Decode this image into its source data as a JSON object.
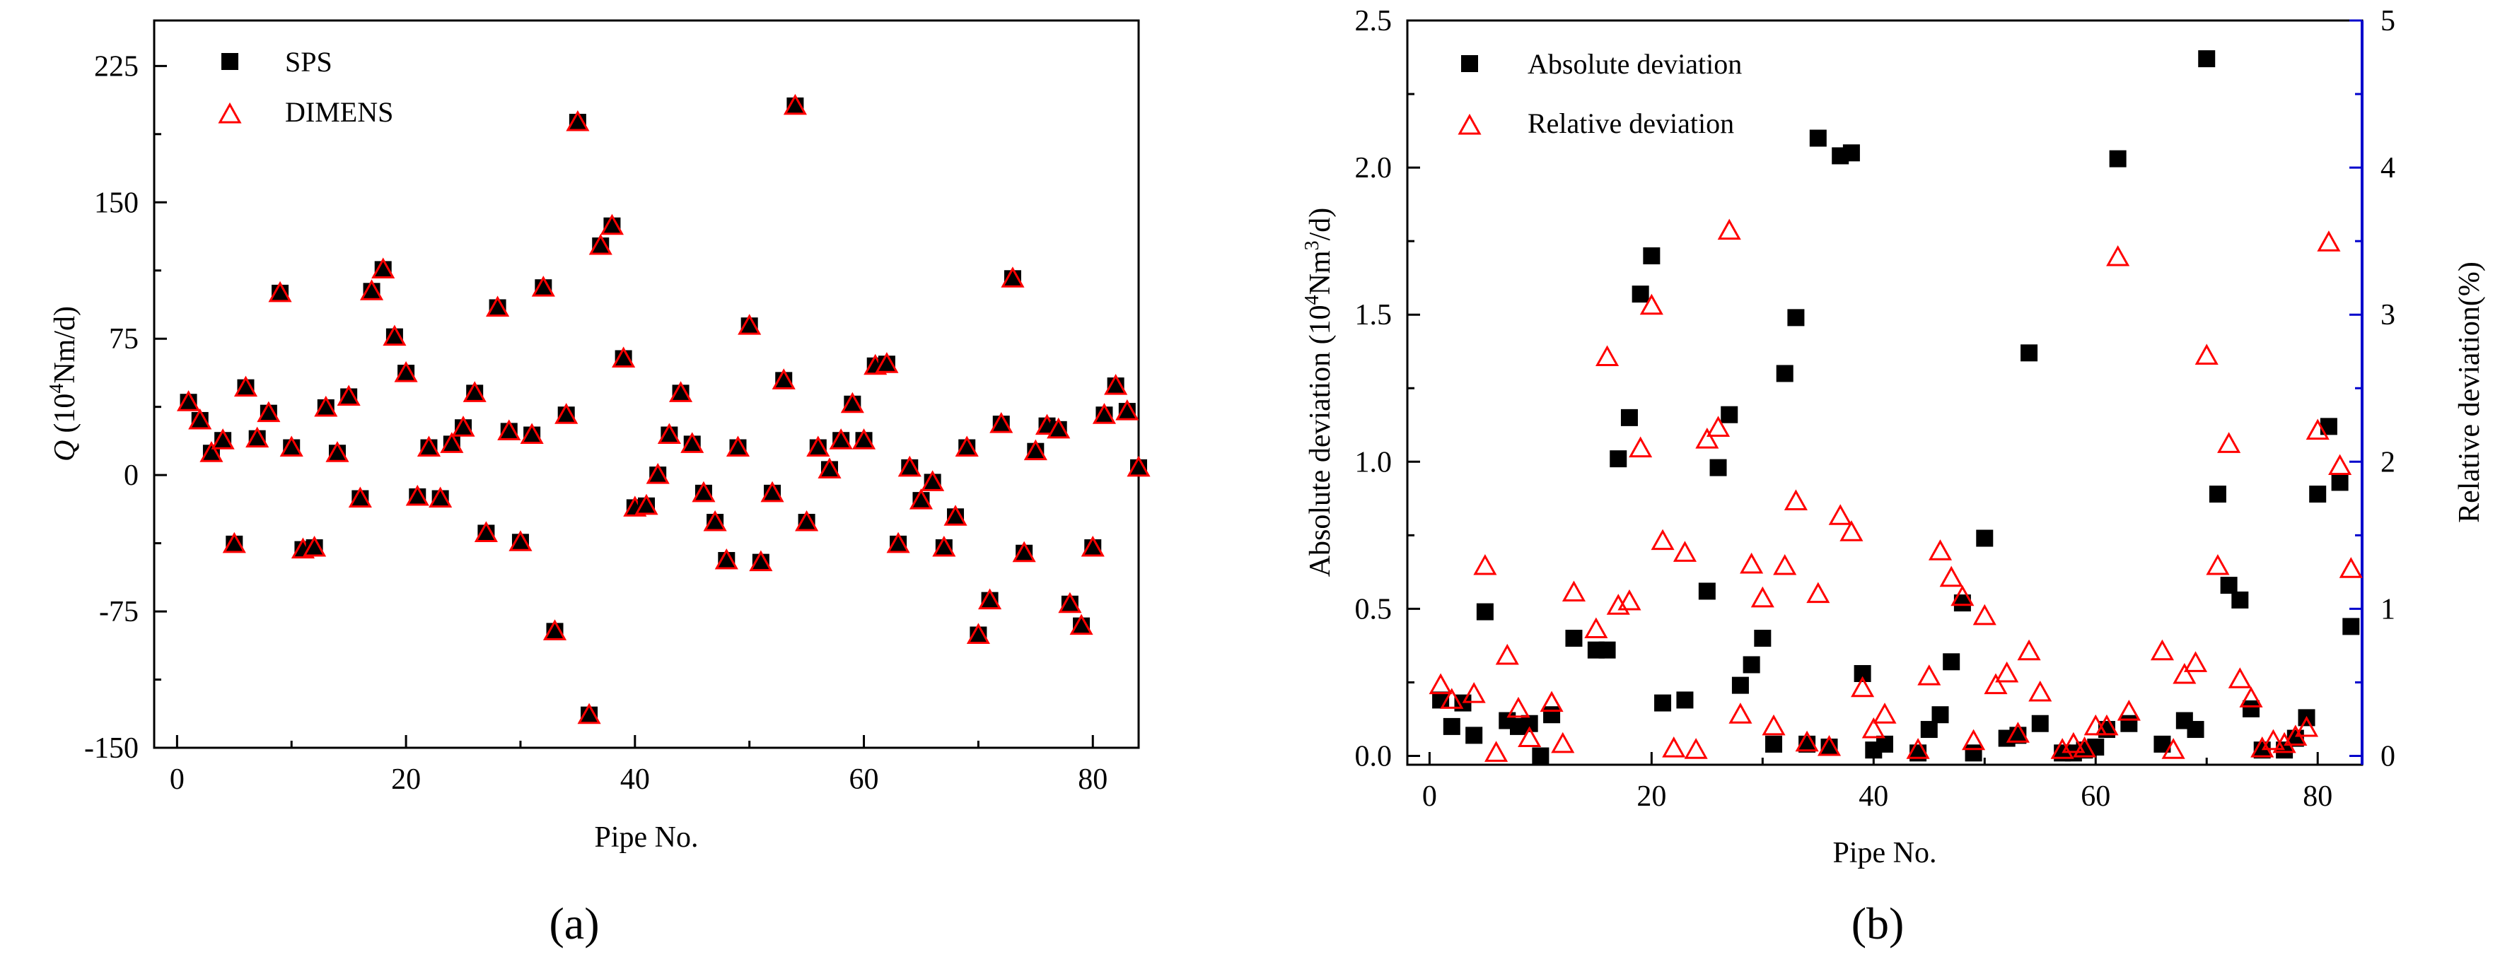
{
  "colors": {
    "sps": "#000000",
    "dimens": "#ff0000",
    "absolute": "#000000",
    "relative": "#ff0000",
    "right_axis": "#0000cc"
  },
  "chart_data": [
    {
      "type": "scatter",
      "panel_label": "(a)",
      "xlabel": "Pipe No.",
      "ylabel": "Q (10⁴Nm/d)",
      "ylabel_parts": {
        "q": "Q",
        "open": "(10",
        "sup": "4",
        "rest": "Nm/d)"
      },
      "xlim": [
        -2,
        84
      ],
      "ylim": [
        -150,
        250
      ],
      "xticks": [
        0,
        20,
        40,
        60,
        80
      ],
      "yticks": [
        -150,
        -75,
        0,
        75,
        150,
        225
      ],
      "grid": false,
      "legend_position": "top-left",
      "series": [
        {
          "name": "SPS",
          "marker": "filled-square",
          "color": "#000000"
        },
        {
          "name": "DIMENS",
          "marker": "open-triangle",
          "color": "#ff0000"
        }
      ],
      "x": [
        1,
        2,
        3,
        4,
        5,
        6,
        7,
        8,
        9,
        10,
        11,
        12,
        13,
        14,
        15,
        16,
        17,
        18,
        19,
        20,
        21,
        22,
        23,
        24,
        25,
        26,
        27,
        28,
        29,
        30,
        31,
        32,
        33,
        34,
        35,
        36,
        37,
        38,
        39,
        40,
        41,
        42,
        43,
        44,
        45,
        46,
        47,
        48,
        49,
        50,
        51,
        52,
        53,
        54,
        55,
        56,
        57,
        58,
        59,
        60,
        61,
        62,
        63,
        64,
        65,
        66,
        67,
        68,
        69,
        70,
        71,
        72,
        73,
        74,
        75,
        76,
        77,
        78,
        79,
        80,
        81,
        82,
        83,
        84
      ],
      "values": [
        40,
        30,
        12,
        19,
        -38,
        48,
        20,
        34,
        100,
        15,
        -41,
        -40,
        37,
        12,
        43,
        -13,
        101,
        113,
        76,
        56,
        -12,
        15,
        -13,
        17,
        26,
        45,
        -32,
        92,
        24,
        -37,
        22,
        103,
        -86,
        33,
        194,
        -132,
        126,
        137,
        64,
        -18,
        -17,
        0,
        22,
        45,
        17,
        -10,
        -26,
        -47,
        15,
        82,
        -48,
        -10,
        52,
        203,
        -26,
        15,
        3,
        19,
        39,
        19,
        60,
        61,
        -38,
        4,
        -14,
        -4,
        -40,
        -23,
        15,
        -88,
        -69,
        28,
        108,
        -43,
        13,
        27,
        25,
        -71,
        -83,
        -40,
        33,
        49,
        35,
        4
      ]
    },
    {
      "type": "scatter",
      "panel_label": "(b)",
      "xlabel": "Pipe No.",
      "ylabel_left": "Absolute deviation (10⁴Nm³/d)",
      "ylabel_left_parts": {
        "main": "Absolute deviation (10",
        "sup1": "4",
        "mid": "Nm",
        "sup2": "3",
        "end": "/d)"
      },
      "ylabel_right": "Relative deviation(%)",
      "xlim": [
        -2,
        84
      ],
      "ylim_left": [
        -0.03,
        2.5
      ],
      "ylim_right": [
        -0.06,
        5
      ],
      "xticks": [
        0,
        20,
        40,
        60,
        80
      ],
      "yticks_left": [
        0.0,
        0.5,
        1.0,
        1.5,
        2.0,
        2.5
      ],
      "yticks_right": [
        0,
        1,
        2,
        3,
        4,
        5
      ],
      "grid": false,
      "legend_position": "top-left",
      "series": [
        {
          "name": "Absolute deviation",
          "axis": "left",
          "marker": "filled-square",
          "color": "#000000",
          "x": [
            1,
            2,
            3,
            4,
            5,
            7,
            8,
            9,
            10,
            11,
            13,
            15,
            16,
            17,
            18,
            19,
            20,
            21,
            23,
            25,
            26,
            27,
            28,
            29,
            30,
            31,
            32,
            33,
            34,
            35,
            36,
            37,
            38,
            39,
            40,
            41,
            44,
            45,
            46,
            47,
            48,
            49,
            50,
            52,
            53,
            54,
            55,
            57,
            58,
            59,
            60,
            61,
            62,
            63,
            66,
            68,
            69,
            70,
            71,
            72,
            73,
            74,
            75,
            77,
            78,
            79,
            80,
            81,
            82,
            83
          ],
          "values": [
            0.19,
            0.1,
            0.18,
            0.07,
            0.49,
            0.12,
            0.1,
            0.11,
            0.0,
            0.14,
            0.4,
            0.36,
            0.36,
            1.01,
            1.15,
            1.57,
            1.7,
            0.18,
            0.19,
            0.56,
            0.98,
            1.16,
            0.24,
            0.31,
            0.4,
            0.04,
            1.3,
            1.49,
            0.04,
            2.1,
            0.03,
            2.04,
            2.05,
            0.28,
            0.02,
            0.04,
            0.01,
            0.09,
            0.14,
            0.32,
            0.52,
            0.01,
            0.74,
            0.06,
            0.07,
            1.37,
            0.11,
            0.01,
            0.01,
            0.02,
            0.03,
            0.09,
            2.03,
            0.11,
            0.04,
            0.12,
            0.09,
            2.37,
            0.89,
            0.58,
            0.53,
            0.16,
            0.02,
            0.02,
            0.06,
            0.13,
            0.89,
            1.12,
            0.93,
            0.44
          ]
        },
        {
          "name": "Relative deviation",
          "axis": "right",
          "marker": "open-triangle",
          "color": "#ff0000",
          "x": [
            1,
            2,
            4,
            5,
            6,
            7,
            8,
            9,
            11,
            12,
            13,
            15,
            16,
            17,
            18,
            19,
            20,
            21,
            22,
            23,
            24,
            25,
            26,
            27,
            28,
            29,
            30,
            31,
            32,
            33,
            34,
            35,
            36,
            37,
            38,
            39,
            40,
            41,
            44,
            45,
            46,
            47,
            48,
            49,
            50,
            51,
            52,
            53,
            54,
            55,
            57,
            58,
            59,
            60,
            61,
            62,
            63,
            66,
            67,
            68,
            69,
            70,
            71,
            72,
            73,
            74,
            75,
            76,
            77,
            78,
            79,
            80,
            81,
            82,
            83
          ],
          "values": [
            0.48,
            0.38,
            0.42,
            1.29,
            0.02,
            0.68,
            0.32,
            0.12,
            0.36,
            0.08,
            1.11,
            0.86,
            2.71,
            1.02,
            1.05,
            2.09,
            3.06,
            1.46,
            0.05,
            1.38,
            0.04,
            2.15,
            2.23,
            3.57,
            0.28,
            1.3,
            1.07,
            0.2,
            1.29,
            1.73,
            0.09,
            1.1,
            0.06,
            1.63,
            1.52,
            0.46,
            0.18,
            0.28,
            0.04,
            0.54,
            1.39,
            1.21,
            1.08,
            0.1,
            0.95,
            0.48,
            0.56,
            0.15,
            0.71,
            0.43,
            0.04,
            0.08,
            0.05,
            0.2,
            0.2,
            3.39,
            0.3,
            0.71,
            0.04,
            0.55,
            0.63,
            2.72,
            1.29,
            2.12,
            0.52,
            0.39,
            0.05,
            0.1,
            0.08,
            0.13,
            0.19,
            2.21,
            3.49,
            1.97,
            1.27
          ]
        }
      ]
    }
  ]
}
